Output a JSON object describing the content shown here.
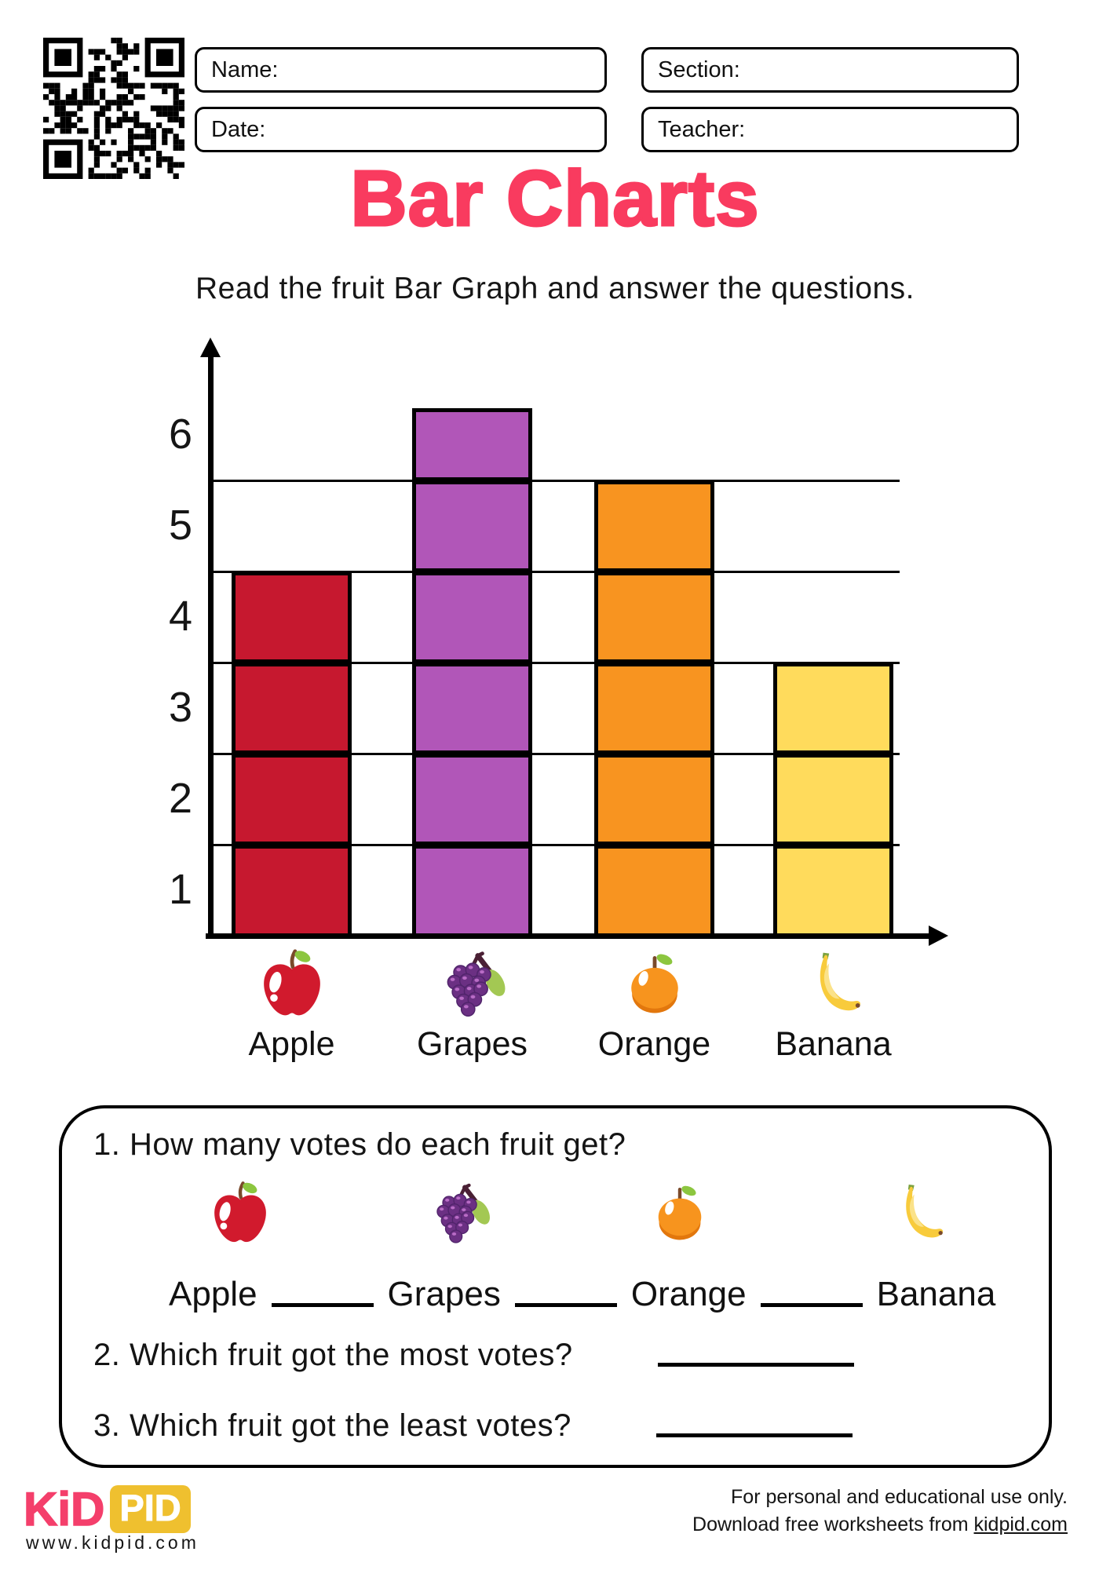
{
  "header": {
    "fields": {
      "name": "Name:",
      "section": "Section:",
      "date": "Date:",
      "teacher": "Teacher:"
    },
    "title": "Bar Charts",
    "title_color": "#F93B5F",
    "subtitle": "Read the fruit Bar Graph and answer the questions."
  },
  "chart_data": {
    "type": "bar",
    "title": "",
    "xlabel": "",
    "ylabel": "",
    "categories": [
      "Apple",
      "Grapes",
      "Orange",
      "Banana"
    ],
    "values": [
      4,
      6,
      5,
      3
    ],
    "bar_colors": [
      "#C6182F",
      "#B156B8",
      "#F89420",
      "#FFDB5C"
    ],
    "yticks": [
      1,
      2,
      3,
      4,
      5,
      6
    ],
    "ylim": [
      0,
      6.5
    ],
    "grid": "horizontal lines at values 1-5, unit cells outlined inside bars",
    "legend": "none"
  },
  "questions": {
    "q1": "1. How many votes do each fruit get?",
    "fill_items": [
      {
        "label": "Apple",
        "blank_after": true
      },
      {
        "label": "Grapes",
        "blank_after": true
      },
      {
        "label": "Orange",
        "blank_after": true
      },
      {
        "label": "Banana",
        "blank_after": false
      }
    ],
    "q2": "2. Which fruit got the most votes?",
    "q3": "3. Which fruit got the least votes?"
  },
  "footer": {
    "logo_kid": "KiD",
    "logo_pid": "PID",
    "logo_pink": "#F43F6B",
    "logo_yellow": "#EFC02F",
    "site": "www.kidpid.com",
    "note_line1": "For personal and educational use only.",
    "note_line2_prefix": "Download free worksheets from ",
    "note_link": "kidpid.com"
  }
}
